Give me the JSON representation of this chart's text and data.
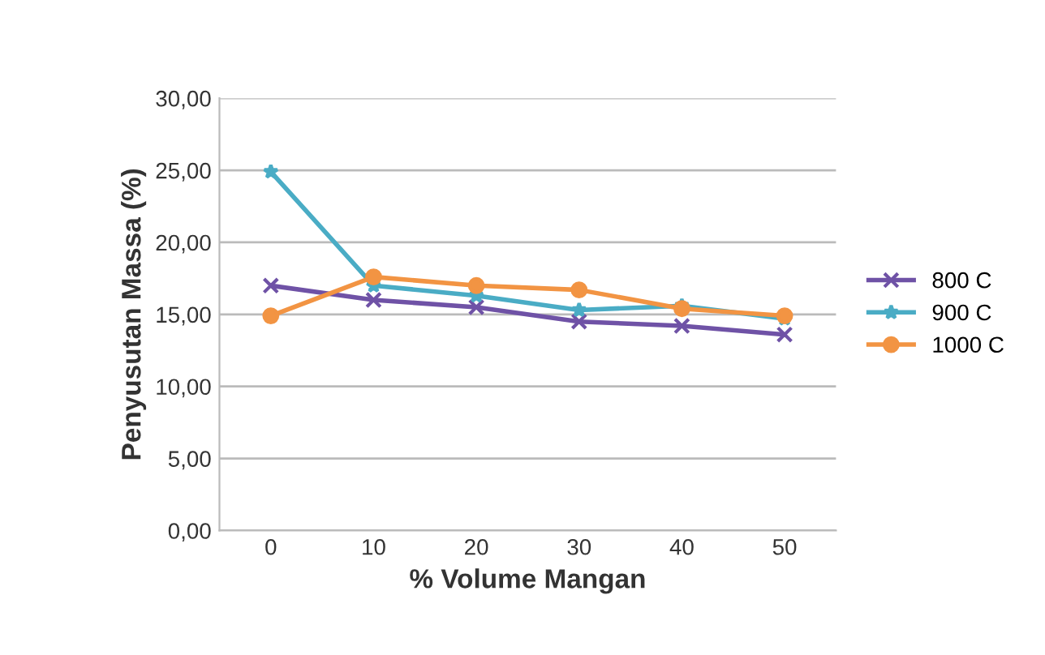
{
  "chart_data": {
    "type": "line",
    "xlabel": "% Volume Mangan",
    "ylabel": "Penyusutan Massa (%)",
    "categories": [
      "0",
      "10",
      "20",
      "30",
      "40",
      "50"
    ],
    "series": [
      {
        "name": "800 C",
        "color": "#6f52a6",
        "marker": "cross",
        "values": [
          17.0,
          16.0,
          15.5,
          14.5,
          14.2,
          13.6
        ]
      },
      {
        "name": "900 C",
        "color": "#4aacc5",
        "marker": "star",
        "values": [
          24.9,
          17.0,
          16.3,
          15.3,
          15.6,
          14.7
        ]
      },
      {
        "name": "1000 C",
        "color": "#f29443",
        "marker": "circle",
        "values": [
          14.9,
          17.6,
          17.0,
          16.7,
          15.4,
          14.9
        ]
      }
    ],
    "ylim": [
      0,
      30
    ],
    "yticks": [
      {
        "value": 0,
        "label": "0,00"
      },
      {
        "value": 5,
        "label": "5,00"
      },
      {
        "value": 10,
        "label": "10,00"
      },
      {
        "value": 15,
        "label": "15,00"
      },
      {
        "value": 20,
        "label": "20,00"
      },
      {
        "value": 25,
        "label": "25,00"
      },
      {
        "value": 30,
        "label": "30,00"
      }
    ],
    "grid": "y",
    "legend": "right"
  }
}
